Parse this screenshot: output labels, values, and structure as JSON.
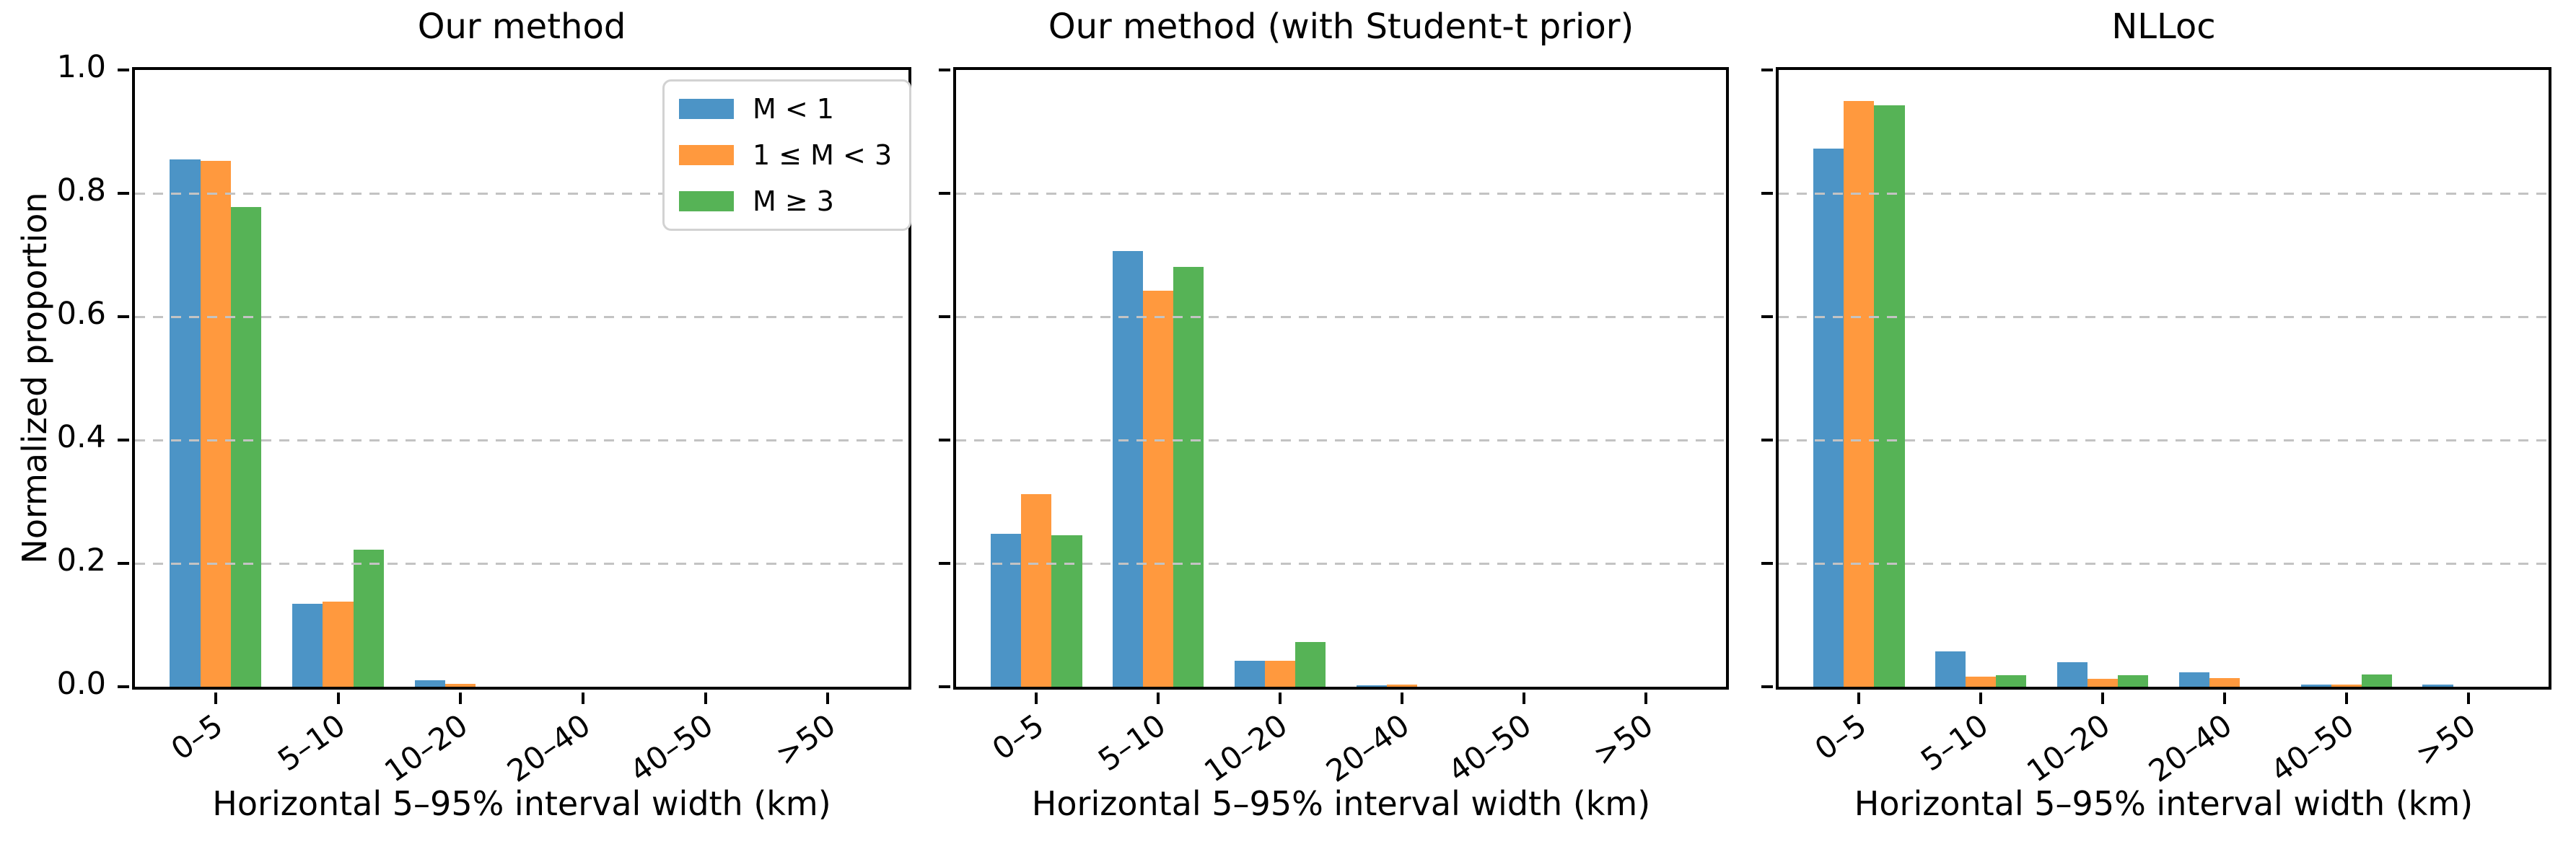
{
  "figure": {
    "ylabel": "Normalized proportion",
    "xlabel": "Horizontal 5–95% interval width (km)",
    "ytick_labels": [
      "0.0",
      "0.2",
      "0.4",
      "0.6",
      "0.8",
      "1.0"
    ],
    "legend_labels": [
      "M < 1",
      "1 ≤ M < 3",
      "M ≥ 3"
    ],
    "series_colors": [
      "#4C94C6",
      "#FF993E",
      "#56B356"
    ],
    "grid_color": "#c3c3c3",
    "spine_color": "#000000",
    "background_color": "#ffffff"
  },
  "chart_data": [
    {
      "type": "bar",
      "title": "Our method",
      "categories": [
        "0–5",
        "5–10",
        "10–20",
        "20–40",
        "40–50",
        ">50"
      ],
      "series": [
        {
          "name": "M < 1",
          "values": [
            0.855,
            0.134,
            0.01,
            0,
            0,
            0
          ]
        },
        {
          "name": "1 ≤ M < 3",
          "values": [
            0.853,
            0.138,
            0.005,
            0,
            0,
            0
          ]
        },
        {
          "name": "M ≥ 3",
          "values": [
            0.778,
            0.222,
            0,
            0,
            0,
            0
          ]
        }
      ],
      "xlabel": "Horizontal 5–95% interval width (km)",
      "ylabel": "Normalized proportion",
      "ylim": [
        0,
        1
      ],
      "grid": "horizontal dashed at 0.2,0.4,0.6,0.8",
      "legend_position": "upper right"
    },
    {
      "type": "bar",
      "title": "Our method (with Student-t prior)",
      "categories": [
        "0–5",
        "5–10",
        "10–20",
        "20–40",
        "40–50",
        ">50"
      ],
      "series": [
        {
          "name": "M < 1",
          "values": [
            0.248,
            0.707,
            0.042,
            0.002,
            0,
            0
          ]
        },
        {
          "name": "1 ≤ M < 3",
          "values": [
            0.312,
            0.642,
            0.042,
            0.004,
            0,
            0
          ]
        },
        {
          "name": "M ≥ 3",
          "values": [
            0.246,
            0.681,
            0.073,
            0,
            0,
            0
          ]
        }
      ],
      "xlabel": "Horizontal 5–95% interval width (km)",
      "ylabel": "",
      "ylim": [
        0,
        1
      ],
      "grid": "horizontal dashed at 0.2,0.4,0.6,0.8",
      "legend_position": "none"
    },
    {
      "type": "bar",
      "title": "NLLoc",
      "categories": [
        "0–5",
        "5–10",
        "10–20",
        "20–40",
        "40–50",
        ">50"
      ],
      "series": [
        {
          "name": "M < 1",
          "values": [
            0.872,
            0.057,
            0.04,
            0.023,
            0.004,
            0.003
          ]
        },
        {
          "name": "1 ≤ M < 3",
          "values": [
            0.95,
            0.017,
            0.013,
            0.014,
            0.004,
            0
          ]
        },
        {
          "name": "M ≥ 3",
          "values": [
            0.943,
            0.019,
            0.019,
            0,
            0.02,
            0
          ]
        }
      ],
      "xlabel": "Horizontal 5–95% interval width (km)",
      "ylabel": "",
      "ylim": [
        0,
        1
      ],
      "grid": "horizontal dashed at 0.2,0.4,0.6,0.8",
      "legend_position": "none"
    }
  ]
}
